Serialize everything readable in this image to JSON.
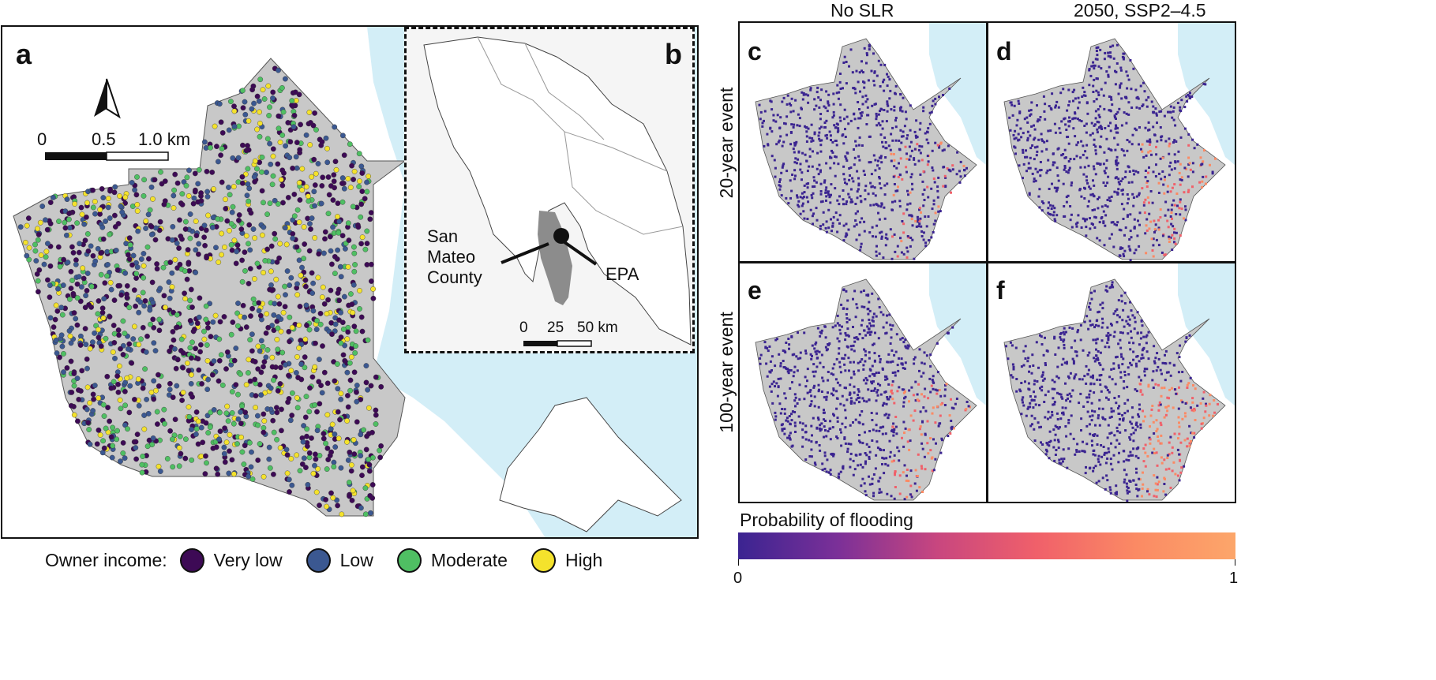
{
  "panels": {
    "a": "a",
    "b": "b",
    "c": "c",
    "d": "d",
    "e": "e",
    "f": "f"
  },
  "scale_a": {
    "t0": "0",
    "t1": "0.5",
    "t2": "1.0 km"
  },
  "scale_b": {
    "t0": "0",
    "t1": "25",
    "t2": "50 km"
  },
  "inset_labels": {
    "county": "San\nMateo\nCounty",
    "county_lines": [
      "San",
      "Mateo",
      "County"
    ],
    "city": "EPA"
  },
  "column_headers": {
    "left": "No SLR",
    "right": "2050, SSP2–4.5"
  },
  "row_headers": {
    "top": "20-year event",
    "bottom": "100-year event"
  },
  "legend_income": {
    "title": "Owner income:",
    "items": [
      {
        "label": "Very low",
        "color": "#3d0a55"
      },
      {
        "label": "Low",
        "color": "#3b5891"
      },
      {
        "label": "Moderate",
        "color": "#4fbf63"
      },
      {
        "label": "High",
        "color": "#f4e22c"
      }
    ]
  },
  "colorbar": {
    "title": "Probability of flooding",
    "min": "0",
    "max": "1",
    "colors": [
      "#3b2491",
      "#7b3098",
      "#c8467f",
      "#f0606a",
      "#fb8a64",
      "#fca66a"
    ]
  },
  "colors": {
    "land": "#c8c8c8",
    "water": "#d3eef7",
    "frame": "#111111",
    "inset_bg": "#f5f5f5",
    "county": "#8c8c8c"
  }
}
